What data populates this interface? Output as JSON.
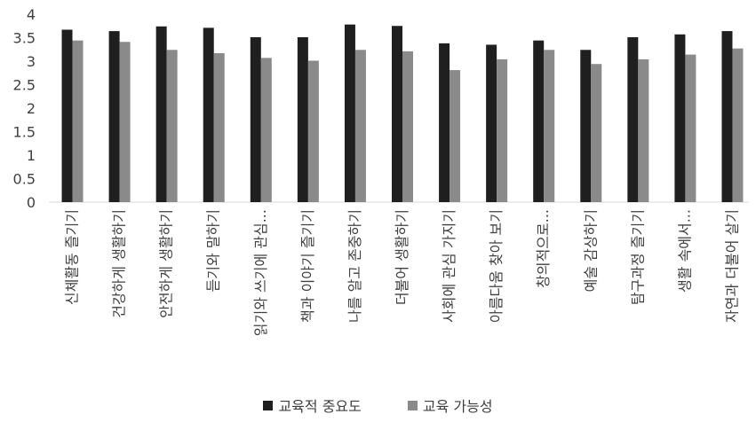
{
  "chart_data": {
    "type": "bar",
    "title": "",
    "xlabel": "",
    "ylabel": "",
    "ylim": [
      0,
      4
    ],
    "yticks": [
      "0",
      "0.5",
      "1",
      "1.5",
      "2",
      "2.5",
      "3",
      "3.5",
      "4"
    ],
    "grid": false,
    "legend_position": "bottom",
    "categories": [
      "신체활동 즐기기",
      "건강하게 생활하기",
      "안전하게 생활하기",
      "듣기와 말하기",
      "읽기와 쓰기에 관심...",
      "책과 이야기 즐기기",
      "나를 알고 존중하기",
      "더불어 생활하기",
      "사회에 관심 가지기",
      "아름다움 찾아 보기",
      "창의적으로...",
      "예술 감상하기",
      "탐구과정 즐기기",
      "생활 속에서...",
      "자연과 더불어 살기"
    ],
    "series": [
      {
        "name": "교육적 중요도",
        "color": "#1f1f1f",
        "values": [
          3.67,
          3.64,
          3.74,
          3.71,
          3.51,
          3.51,
          3.78,
          3.75,
          3.38,
          3.35,
          3.44,
          3.24,
          3.51,
          3.57,
          3.64
        ]
      },
      {
        "name": "교육 가능성",
        "color": "#8a8a8a",
        "values": [
          3.44,
          3.41,
          3.24,
          3.17,
          3.07,
          3.01,
          3.24,
          3.21,
          2.81,
          3.04,
          3.24,
          2.94,
          3.04,
          3.14,
          3.27
        ]
      }
    ]
  }
}
